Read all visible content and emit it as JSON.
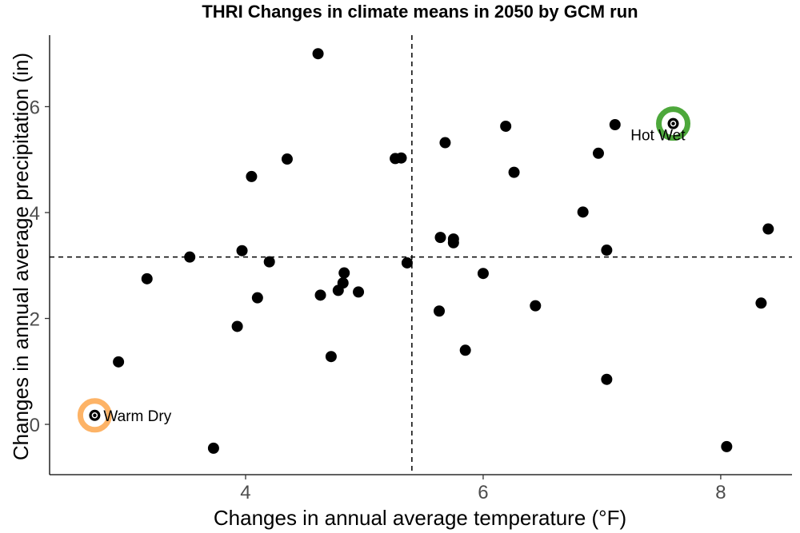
{
  "chart_data": {
    "type": "scatter",
    "title": "THRI Changes in climate means in 2050 by GCM run",
    "xlabel": "Changes in annual average temperature (°F)",
    "ylabel": "Changes in annual average precipitation (in)",
    "xlim": [
      2.35,
      8.6
    ],
    "ylim": [
      -0.95,
      7.35
    ],
    "x_ticks": [
      4,
      6,
      8
    ],
    "y_ticks": [
      0,
      2,
      4,
      6
    ],
    "x_tick_labels": [
      "4",
      "6",
      "8"
    ],
    "y_tick_labels": [
      "0",
      "2",
      "4",
      "6"
    ],
    "grid": false,
    "reference_lines": {
      "x": 5.4,
      "y": 3.16
    },
    "point_color": "#000000",
    "points": [
      {
        "x": 2.73,
        "y": 0.17
      },
      {
        "x": 2.93,
        "y": 1.18
      },
      {
        "x": 3.17,
        "y": 2.75
      },
      {
        "x": 3.53,
        "y": 3.16
      },
      {
        "x": 3.73,
        "y": -0.45
      },
      {
        "x": 3.93,
        "y": 1.85
      },
      {
        "x": 3.97,
        "y": 3.28
      },
      {
        "x": 4.05,
        "y": 4.68
      },
      {
        "x": 4.1,
        "y": 2.39
      },
      {
        "x": 4.2,
        "y": 3.07
      },
      {
        "x": 4.35,
        "y": 5.01
      },
      {
        "x": 4.61,
        "y": 7.0
      },
      {
        "x": 4.63,
        "y": 2.44
      },
      {
        "x": 4.72,
        "y": 1.28
      },
      {
        "x": 4.78,
        "y": 2.53
      },
      {
        "x": 4.82,
        "y": 2.67
      },
      {
        "x": 4.83,
        "y": 2.86
      },
      {
        "x": 4.95,
        "y": 2.5
      },
      {
        "x": 5.26,
        "y": 5.02
      },
      {
        "x": 5.31,
        "y": 5.03
      },
      {
        "x": 5.36,
        "y": 3.05
      },
      {
        "x": 5.63,
        "y": 2.14
      },
      {
        "x": 5.64,
        "y": 3.53
      },
      {
        "x": 5.68,
        "y": 5.32
      },
      {
        "x": 5.75,
        "y": 3.5
      },
      {
        "x": 5.75,
        "y": 3.43
      },
      {
        "x": 5.85,
        "y": 1.4
      },
      {
        "x": 6.0,
        "y": 2.85
      },
      {
        "x": 6.19,
        "y": 5.63
      },
      {
        "x": 6.26,
        "y": 4.76
      },
      {
        "x": 6.44,
        "y": 2.24
      },
      {
        "x": 6.84,
        "y": 4.01
      },
      {
        "x": 6.97,
        "y": 5.12
      },
      {
        "x": 7.04,
        "y": 0.85
      },
      {
        "x": 7.04,
        "y": 3.29
      },
      {
        "x": 7.11,
        "y": 5.66
      },
      {
        "x": 7.6,
        "y": 5.68
      },
      {
        "x": 8.05,
        "y": -0.42
      },
      {
        "x": 8.34,
        "y": 2.29
      },
      {
        "x": 8.4,
        "y": 3.69
      }
    ],
    "highlights": [
      {
        "label": "Warm Dry",
        "x": 2.73,
        "y": 0.17,
        "ring_color": "#FDB366",
        "label_anchor": "right"
      },
      {
        "label": "Hot Wet",
        "x": 7.6,
        "y": 5.68,
        "ring_color": "#4DA83B",
        "label_anchor": "below-left"
      }
    ]
  }
}
